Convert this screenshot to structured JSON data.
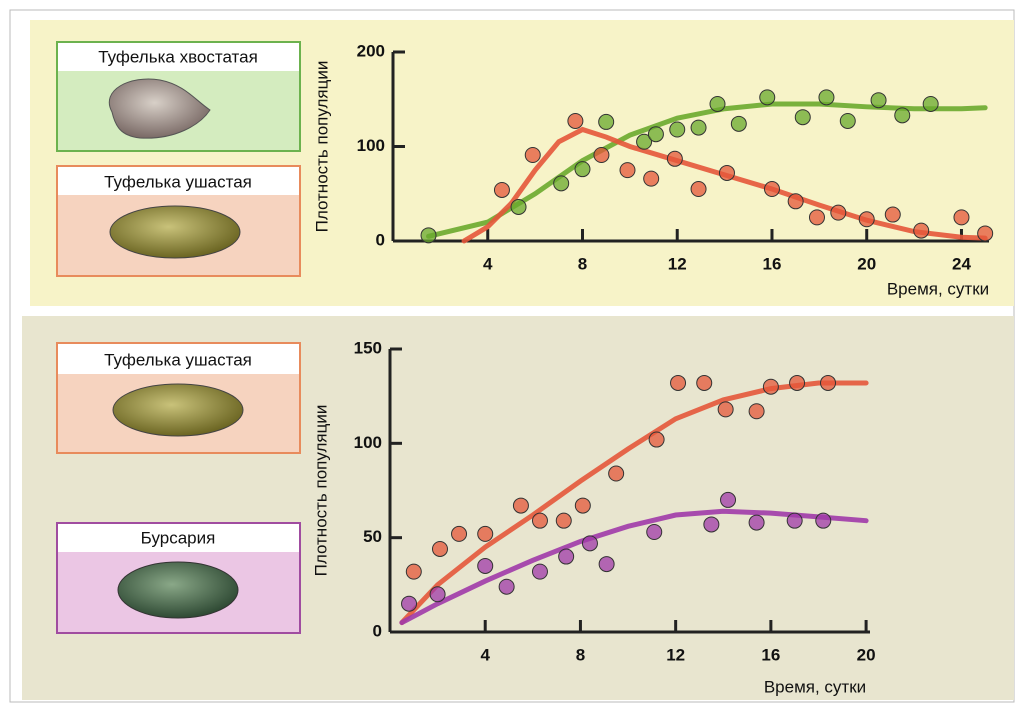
{
  "chart_data": [
    {
      "type": "scatter",
      "ylabel": "Плотность популяции",
      "xlabel": "Время, сутки",
      "xlim": [
        0,
        25.5
      ],
      "ylim": [
        0,
        200
      ],
      "xticks": [
        4,
        8,
        12,
        16,
        20,
        24
      ],
      "yticks": [
        0,
        100,
        200
      ],
      "series": [
        {
          "name": "Туфелька хвостатая",
          "color": "#6aaa2e",
          "x": [
            1.5,
            5.3,
            7.1,
            8,
            9,
            10.6,
            11.1,
            12,
            12.9,
            13.7,
            14.6,
            15.8,
            17.3,
            18.3,
            19.2,
            20.5,
            21.5,
            22.7
          ],
          "values": [
            6,
            36,
            61,
            76,
            126,
            105,
            113,
            118,
            120,
            145,
            124,
            152,
            131,
            152,
            127,
            149,
            133,
            145
          ],
          "curve_x": [
            1.5,
            4,
            6,
            8,
            10,
            12,
            14,
            16,
            18,
            20,
            22,
            24,
            25
          ],
          "curve_values": [
            5,
            20,
            50,
            85,
            112,
            130,
            140,
            145,
            145,
            142,
            140,
            140,
            141
          ]
        },
        {
          "name": "Туфелька ушастая",
          "color": "#e4573a",
          "x": [
            4.6,
            5.9,
            7.7,
            8.8,
            9.9,
            10.9,
            11.9,
            12.9,
            14.1,
            16,
            17,
            17.9,
            18.8,
            20,
            21.1,
            22.3,
            24,
            25
          ],
          "values": [
            54,
            91,
            127,
            91,
            75,
            66,
            87,
            55,
            72,
            55,
            42,
            25,
            30,
            23,
            28,
            11,
            25,
            8
          ],
          "curve_x": [
            3,
            4,
            5,
            6,
            7,
            8,
            9,
            10,
            12,
            14,
            16,
            18,
            20,
            22,
            24,
            25
          ],
          "curve_values": [
            0,
            15,
            40,
            75,
            105,
            118,
            110,
            100,
            85,
            70,
            55,
            38,
            22,
            10,
            4,
            3
          ]
        }
      ]
    },
    {
      "type": "scatter",
      "ylabel": "Плотность популяции",
      "xlabel": "Время, сутки",
      "xlim": [
        0,
        20.5
      ],
      "ylim": [
        0,
        150
      ],
      "xticks": [
        4,
        8,
        12,
        16,
        20
      ],
      "yticks": [
        0,
        50,
        100,
        150
      ],
      "series": [
        {
          "name": "Туфелька ушастая",
          "color": "#e4573a",
          "x": [
            1,
            2.1,
            2.9,
            4,
            5.5,
            6.3,
            7.3,
            8.1,
            9.5,
            11.2,
            12.1,
            13.2,
            14.1,
            15.4,
            16,
            17.1,
            18.4
          ],
          "values": [
            32,
            44,
            52,
            52,
            67,
            59,
            59,
            67,
            84,
            102,
            132,
            132,
            118,
            117,
            130,
            132,
            132
          ],
          "curve_x": [
            0.5,
            2,
            4,
            6,
            8,
            10,
            12,
            14,
            16,
            18,
            20
          ],
          "curve_values": [
            5,
            25,
            45,
            62,
            80,
            97,
            113,
            123,
            129,
            132,
            132
          ]
        },
        {
          "name": "Бурсария",
          "color": "#a03aa8",
          "x": [
            0.8,
            2,
            4,
            4.9,
            6.3,
            7.4,
            8.4,
            9.1,
            11.1,
            13.5,
            14.2,
            15.4,
            17,
            18.2
          ],
          "values": [
            15,
            20,
            35,
            24,
            32,
            40,
            47,
            36,
            53,
            57,
            70,
            58,
            59,
            59
          ],
          "curve_x": [
            0.5,
            2,
            4,
            6,
            8,
            10,
            12,
            14,
            16,
            18,
            20
          ],
          "curve_values": [
            5,
            15,
            27,
            38,
            48,
            56,
            62,
            64,
            63,
            61,
            59
          ]
        }
      ]
    }
  ]
}
